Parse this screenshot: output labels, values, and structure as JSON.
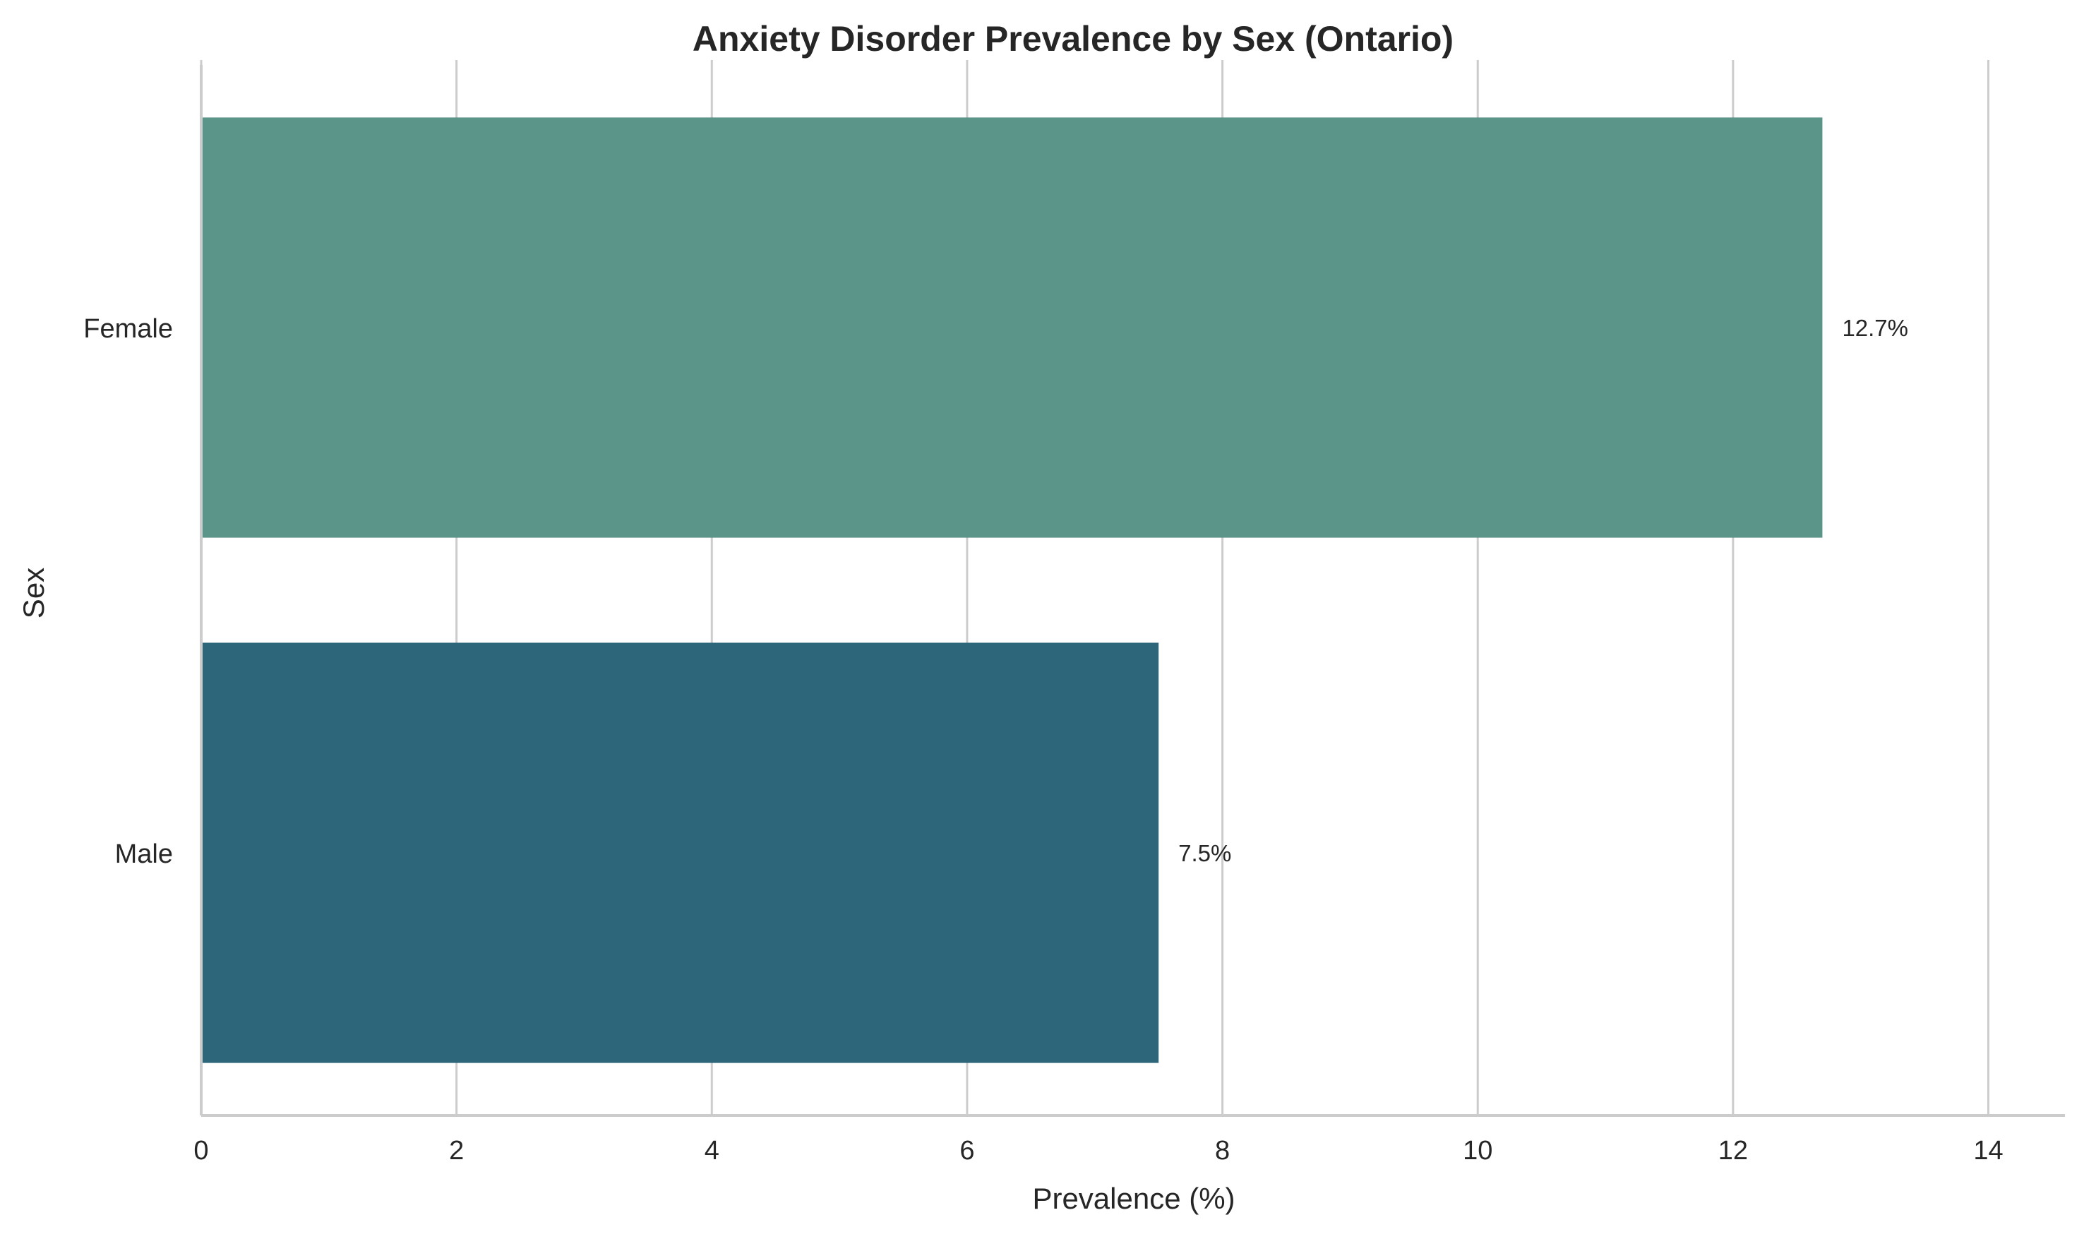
{
  "chart_data": {
    "type": "bar",
    "orientation": "horizontal",
    "title": "Anxiety Disorder Prevalence by Sex (Ontario)",
    "xlabel": "Prevalence (%)",
    "ylabel": "Sex",
    "categories": [
      "Female",
      "Male"
    ],
    "values": [
      12.7,
      7.5
    ],
    "data_labels": [
      "12.7%",
      "7.5%"
    ],
    "colors": [
      "#5b9489",
      "#2d667b"
    ],
    "xlim": [
      0,
      14.6
    ],
    "xticks": [
      0,
      2,
      4,
      6,
      8,
      10,
      12,
      14
    ],
    "xtick_labels": [
      "0",
      "2",
      "4",
      "6",
      "8",
      "10",
      "12",
      "14"
    ],
    "grid": "vertical",
    "legend": "none"
  }
}
